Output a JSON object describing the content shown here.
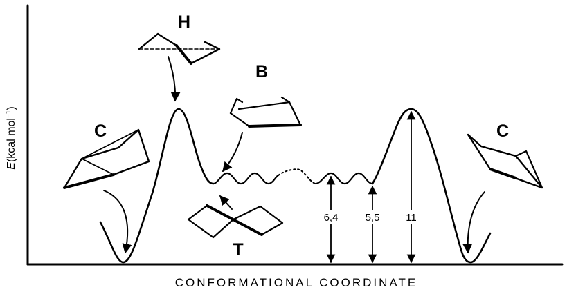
{
  "diagram": {
    "x_axis_title": "CONFORMATIONAL COORDINATE",
    "y_axis_title": {
      "var": "E",
      "unit": "(kcal mol",
      "exp": "−1",
      "close": ")"
    },
    "conformers": {
      "chair_left": "C",
      "half_chair": "H",
      "boat": "B",
      "twist_boat": "T",
      "chair_right": "C"
    },
    "energy_labels": {
      "boat_barrier": "6,4",
      "twist_level": "5,5",
      "half_chair_barrier": "11"
    }
  }
}
